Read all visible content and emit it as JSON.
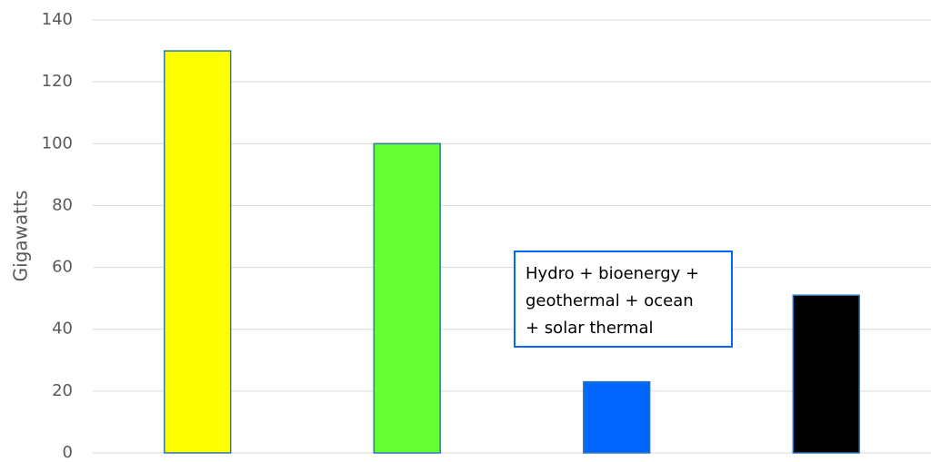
{
  "chart_data": {
    "type": "bar",
    "y_label": "Gigawatts",
    "categories": [
      null,
      null,
      null,
      null
    ],
    "values": [
      130,
      100,
      23,
      51
    ],
    "colors": [
      "#ffff00",
      "#66ff33",
      "#0066ff",
      "#000000"
    ],
    "ylim": [
      0,
      140
    ],
    "yticks": [
      0,
      20,
      40,
      60,
      80,
      100,
      120,
      140
    ],
    "grid": true,
    "annotation": [
      "Hydro + bioenergy +",
      "geothermal + ocean",
      "+ solar thermal"
    ]
  }
}
